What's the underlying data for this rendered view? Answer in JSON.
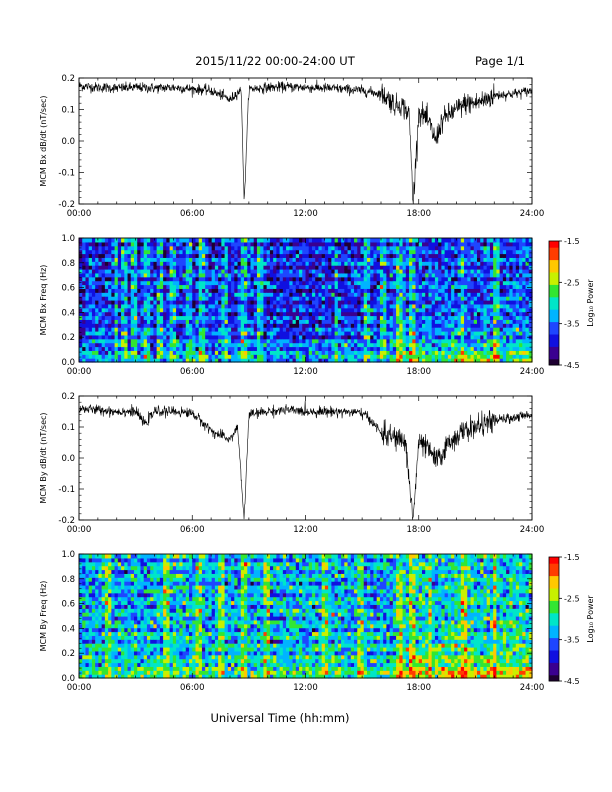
{
  "header": {
    "title": "2015/11/22  00:00-24:00 UT",
    "page_label": "Page 1/1"
  },
  "colors": {
    "ink": "#000000",
    "background": "#ffffff",
    "colormap": [
      "#1e0032",
      "#3a0090",
      "#1010e0",
      "#1e46ff",
      "#00b4ff",
      "#00e6c8",
      "#32e632",
      "#c8f000",
      "#ffc800",
      "#ff3c00",
      "#ff0000"
    ]
  },
  "chart_data": [
    {
      "type": "line",
      "ylabel": "MCM Bx dB/dt (nT/sec)",
      "xlim": [
        0,
        24
      ],
      "ylim": [
        -0.2,
        0.2
      ],
      "x_ticks": [
        "00:00",
        "06:00",
        "12:00",
        "18:00",
        "24:00"
      ],
      "y_ticks": [
        "-0.2",
        "-0.1",
        "0.0",
        "0.1",
        "0.2"
      ],
      "series": [
        {
          "x": [
            0,
            1,
            2,
            3,
            4,
            5,
            6,
            7,
            7.3,
            7.6,
            8,
            8.4,
            8.6,
            8.75,
            9,
            10,
            11,
            12,
            13,
            14,
            15,
            16,
            16.5,
            16.8,
            17,
            17.3,
            17.5,
            17.7,
            18,
            18.3,
            18.6,
            18.9,
            19.2,
            19.5,
            20,
            20.5,
            21,
            21.5,
            22,
            23,
            24
          ],
          "y": [
            0.175,
            0.17,
            0.168,
            0.17,
            0.168,
            0.17,
            0.165,
            0.16,
            0.15,
            0.145,
            0.13,
            0.155,
            0.16,
            -0.2,
            0.165,
            0.17,
            0.172,
            0.17,
            0.168,
            0.165,
            0.16,
            0.15,
            0.13,
            0.11,
            0.12,
            0.1,
            0.08,
            -0.2,
            0.09,
            0.08,
            0.05,
            0.0,
            0.06,
            0.08,
            0.1,
            0.12,
            0.12,
            0.13,
            0.145,
            0.15,
            0.16
          ]
        }
      ]
    },
    {
      "type": "heatmap",
      "ylabel": "MCM Bx Freq (Hz)",
      "xlim": [
        0,
        24
      ],
      "ylim": [
        0,
        1.0
      ],
      "x_ticks": [
        "00:00",
        "06:00",
        "12:00",
        "18:00",
        "24:00"
      ],
      "y_ticks": [
        "0.0",
        "0.2",
        "0.4",
        "0.6",
        "0.8",
        "1.0"
      ],
      "colorbar": {
        "label": "Log₁₀ Power",
        "range": [
          -4.5,
          -1.5
        ],
        "ticks": [
          "-1.5",
          "-2.5",
          "-3.5",
          "-4.5"
        ]
      },
      "base_level": -3.7,
      "low_freq_enhancement": -2.9,
      "active_interval": [
        16.5,
        24
      ],
      "vertical_spikes": [
        2.0,
        2.4,
        2.9,
        3.6,
        4.3,
        5.0,
        5.8,
        6.5,
        7.7,
        8.75,
        9.6,
        13.6,
        15.3,
        16.1,
        17.0,
        17.7,
        20.3,
        22.1
      ]
    },
    {
      "type": "line",
      "ylabel": "MCM By dB/dt (nT/sec)",
      "xlim": [
        0,
        24
      ],
      "ylim": [
        -0.2,
        0.2
      ],
      "x_ticks": [
        "00:00",
        "06:00",
        "12:00",
        "18:00",
        "24:00"
      ],
      "y_ticks": [
        "-0.2",
        "-0.1",
        "0.0",
        "0.1",
        "0.2"
      ],
      "series": [
        {
          "x": [
            0,
            1,
            2,
            3,
            3.5,
            4,
            5,
            6,
            6.8,
            7.2,
            7.6,
            8,
            8.4,
            8.75,
            9,
            10,
            11,
            12,
            13,
            14,
            15,
            15.5,
            16,
            16.5,
            17,
            17.3,
            17.7,
            18,
            18.3,
            18.6,
            19,
            19.3,
            19.6,
            20,
            20.5,
            21,
            21.5,
            22,
            23,
            24
          ],
          "y": [
            0.16,
            0.155,
            0.15,
            0.15,
            0.11,
            0.15,
            0.15,
            0.145,
            0.1,
            0.08,
            0.07,
            0.06,
            0.1,
            -0.2,
            0.14,
            0.15,
            0.155,
            0.15,
            0.15,
            0.15,
            0.145,
            0.12,
            0.08,
            0.07,
            0.06,
            0.05,
            -0.2,
            0.05,
            0.04,
            0.02,
            -0.01,
            0.02,
            0.05,
            0.07,
            0.09,
            0.1,
            0.11,
            0.12,
            0.13,
            0.14
          ]
        }
      ]
    },
    {
      "type": "heatmap",
      "ylabel": "MCM By Freq (Hz)",
      "xlim": [
        0,
        24
      ],
      "ylim": [
        0,
        1.0
      ],
      "x_ticks": [
        "00:00",
        "06:00",
        "12:00",
        "18:00",
        "24:00"
      ],
      "y_ticks": [
        "0.0",
        "0.2",
        "0.4",
        "0.6",
        "0.8",
        "1.0"
      ],
      "colorbar": {
        "label": "Log₁₀ Power",
        "range": [
          -4.5,
          -1.5
        ],
        "ticks": [
          "-1.5",
          "-2.5",
          "-3.5",
          "-4.5"
        ]
      },
      "base_level": -3.15,
      "low_freq_enhancement": -2.6,
      "active_interval": [
        17.0,
        24
      ],
      "vertical_spikes": [
        1.5,
        4.6,
        6.3,
        7.5,
        8.75,
        9.9,
        13.0,
        14.9,
        17.0,
        17.7,
        18.6,
        20.4,
        22.0
      ]
    }
  ],
  "footer": {
    "xlabel": "Universal Time (hh:mm)"
  }
}
